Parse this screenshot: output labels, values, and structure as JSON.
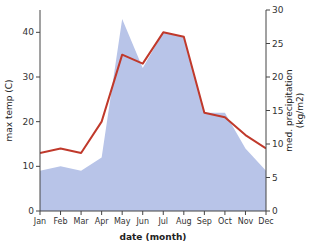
{
  "chart_data": {
    "type": "line",
    "categories": [
      "Jan",
      "Feb",
      "Mar",
      "Apr",
      "May",
      "Jun",
      "Jul",
      "Aug",
      "Sep",
      "Oct",
      "Nov",
      "Dec"
    ],
    "series": [
      {
        "type": "area",
        "color": "#b8c4e8",
        "values": [
          9,
          10,
          9,
          12,
          43,
          32,
          40,
          39,
          22,
          22,
          14,
          9
        ]
      },
      {
        "type": "line",
        "color": "#c0392b",
        "values": [
          13,
          14,
          13,
          20,
          35,
          33,
          40,
          39,
          22,
          21,
          17,
          14
        ]
      }
    ],
    "x_label": "date (month)",
    "y_label": "max temp (C)",
    "y2_label": "med. precipitation\n(kg/m2)",
    "ylim": [
      0,
      45
    ],
    "yticks": [
      0,
      10,
      20,
      30,
      40
    ],
    "y2lim": [
      0,
      30
    ],
    "y2ticks": [
      0,
      5,
      10,
      15,
      20,
      25,
      30
    ],
    "grid": false
  }
}
